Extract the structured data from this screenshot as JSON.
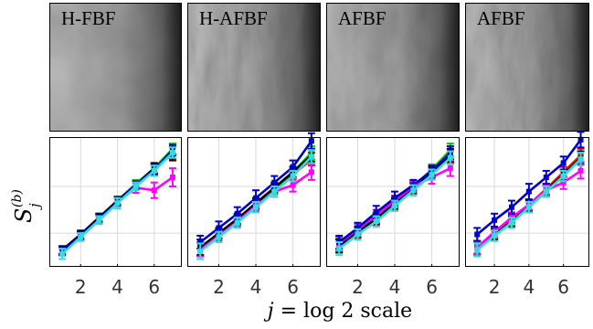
{
  "figure": {
    "xlabel_var": "j",
    "xlabel_rest": " = log 2 scale",
    "ylabel_base": "S",
    "ylabel_sub": "j",
    "ylabel_sup": "(b)"
  },
  "colors": {
    "frame": "#000000",
    "grid": "#d9d9d9",
    "panel_label": "#000000",
    "errorbar": "#222222"
  },
  "chart_data": [
    {
      "type": "line",
      "panel_title": "H-FBF",
      "texture": {
        "streak": "weak",
        "darkening": "right edge"
      },
      "x": [
        1,
        2,
        3,
        4,
        5,
        6,
        7
      ],
      "xticks": [
        2,
        4,
        6
      ],
      "xlim": [
        0.3,
        7.5
      ],
      "ylim": [
        0,
        10
      ],
      "grid": true,
      "series": [
        {
          "color": "#ff0000",
          "values": [
            1.2,
            2.4,
            3.8,
            5.0,
            6.3,
            7.5,
            8.8
          ],
          "err": [
            0.3,
            0.3,
            0.3,
            0.3,
            0.3,
            0.4,
            0.5
          ]
        },
        {
          "color": "#00cc00",
          "values": [
            1.2,
            2.4,
            3.8,
            5.1,
            6.4,
            7.6,
            9.1
          ],
          "err": [
            0.3,
            0.3,
            0.3,
            0.3,
            0.3,
            0.4,
            0.4
          ]
        },
        {
          "color": "#000000",
          "values": [
            1.3,
            2.5,
            3.8,
            5.1,
            6.3,
            7.6,
            8.7
          ],
          "err": [
            0.3,
            0.3,
            0.3,
            0.3,
            0.3,
            0.4,
            0.5
          ]
        },
        {
          "color": "#ff00ff",
          "values": [
            1.2,
            2.3,
            3.6,
            5.0,
            6.1,
            5.9,
            6.9
          ],
          "err": [
            0.3,
            0.3,
            0.3,
            0.3,
            0.4,
            0.6,
            0.7
          ]
        },
        {
          "color": "#0000cc",
          "values": [
            1.2,
            2.4,
            3.7,
            5.0,
            6.3,
            7.5,
            9.0
          ],
          "err": [
            0.3,
            0.3,
            0.3,
            0.3,
            0.3,
            0.4,
            0.4
          ]
        },
        {
          "color": "#33dddd",
          "values": [
            1.0,
            2.3,
            3.6,
            4.9,
            6.2,
            7.4,
            8.8
          ],
          "err": [
            0.4,
            0.3,
            0.3,
            0.4,
            0.3,
            0.4,
            0.4
          ]
        }
      ]
    },
    {
      "type": "line",
      "panel_title": "H-AFBF",
      "texture": {
        "streak": "strong",
        "darkening": "right edge"
      },
      "x": [
        1,
        2,
        3,
        4,
        5,
        6,
        7
      ],
      "xticks": [
        2,
        4,
        6
      ],
      "xlim": [
        0.3,
        7.5
      ],
      "ylim": [
        0,
        10
      ],
      "grid": true,
      "series": [
        {
          "color": "#ff0000",
          "values": [
            1.4,
            2.5,
            3.6,
            4.8,
            6.0,
            7.1,
            8.3
          ],
          "err": [
            0.5,
            0.4,
            0.4,
            0.4,
            0.4,
            0.4,
            0.5
          ]
        },
        {
          "color": "#00cc00",
          "values": [
            1.4,
            2.5,
            3.6,
            4.8,
            6.0,
            7.3,
            8.8
          ],
          "err": [
            0.5,
            0.4,
            0.4,
            0.4,
            0.4,
            0.4,
            0.5
          ]
        },
        {
          "color": "#000000",
          "values": [
            1.5,
            2.6,
            3.7,
            4.9,
            6.1,
            7.3,
            8.6
          ],
          "err": [
            0.6,
            0.4,
            0.4,
            0.4,
            0.4,
            0.4,
            0.5
          ]
        },
        {
          "color": "#ff00ff",
          "values": [
            1.3,
            2.4,
            3.5,
            4.7,
            5.8,
            6.3,
            7.3
          ],
          "err": [
            0.5,
            0.4,
            0.4,
            0.4,
            0.4,
            0.5,
            0.6
          ]
        },
        {
          "color": "#0000cc",
          "values": [
            1.9,
            3.0,
            4.1,
            5.3,
            6.5,
            7.7,
            9.7
          ],
          "err": [
            0.5,
            0.5,
            0.5,
            0.6,
            0.5,
            0.5,
            0.6
          ]
        },
        {
          "color": "#33dddd",
          "values": [
            1.2,
            2.3,
            3.4,
            4.6,
            5.8,
            7.0,
            8.5
          ],
          "err": [
            0.6,
            0.4,
            0.4,
            0.4,
            0.4,
            0.4,
            0.5
          ]
        }
      ]
    },
    {
      "type": "line",
      "panel_title": "AFBF",
      "texture": {
        "streak": "medium",
        "darkening": "right edge"
      },
      "x": [
        1,
        2,
        3,
        4,
        5,
        6,
        7
      ],
      "xticks": [
        2,
        4,
        6
      ],
      "xlim": [
        0.3,
        7.5
      ],
      "ylim": [
        0,
        10
      ],
      "grid": true,
      "series": [
        {
          "color": "#ff0000",
          "values": [
            1.6,
            2.6,
            3.6,
            4.8,
            6.0,
            7.2,
            8.5
          ],
          "err": [
            0.5,
            0.4,
            0.4,
            0.4,
            0.4,
            0.4,
            0.5
          ]
        },
        {
          "color": "#00cc00",
          "values": [
            1.7,
            2.7,
            3.8,
            5.0,
            6.2,
            7.5,
            9.0
          ],
          "err": [
            0.5,
            0.4,
            0.4,
            0.4,
            0.4,
            0.4,
            0.5
          ]
        },
        {
          "color": "#000000",
          "values": [
            1.6,
            2.7,
            3.7,
            4.9,
            6.1,
            7.3,
            8.6
          ],
          "err": [
            0.5,
            0.4,
            0.4,
            0.4,
            0.4,
            0.4,
            0.5
          ]
        },
        {
          "color": "#ff00ff",
          "values": [
            1.8,
            2.9,
            4.0,
            5.1,
            6.2,
            6.9,
            7.6
          ],
          "err": [
            0.5,
            0.4,
            0.4,
            0.4,
            0.4,
            0.5,
            0.6
          ]
        },
        {
          "color": "#0000cc",
          "values": [
            1.9,
            3.0,
            4.2,
            5.3,
            6.3,
            7.4,
            8.8
          ],
          "err": [
            0.5,
            0.4,
            0.5,
            0.5,
            0.4,
            0.4,
            0.5
          ]
        },
        {
          "color": "#33dddd",
          "values": [
            1.4,
            2.5,
            3.5,
            4.7,
            5.9,
            7.1,
            8.4
          ],
          "err": [
            0.5,
            0.4,
            0.4,
            0.4,
            0.4,
            0.4,
            0.5
          ]
        }
      ]
    },
    {
      "type": "line",
      "panel_title": "AFBF",
      "texture": {
        "streak": "strong",
        "darkening": "right edge"
      },
      "x": [
        1,
        2,
        3,
        4,
        5,
        6,
        7
      ],
      "xticks": [
        2,
        4,
        6
      ],
      "xlim": [
        0.3,
        7.5
      ],
      "ylim": [
        0,
        10
      ],
      "grid": true,
      "series": [
        {
          "color": "#ff0000",
          "values": [
            1.5,
            2.6,
            3.6,
            4.8,
            6.0,
            7.3,
            8.6
          ],
          "err": [
            0.5,
            0.4,
            0.4,
            0.4,
            0.4,
            0.4,
            0.5
          ]
        },
        {
          "color": "#00cc00",
          "values": [
            1.4,
            2.4,
            3.4,
            4.6,
            5.8,
            7.0,
            8.4
          ],
          "err": [
            0.5,
            0.4,
            0.4,
            0.4,
            0.4,
            0.4,
            0.5
          ]
        },
        {
          "color": "#000000",
          "values": [
            1.5,
            2.5,
            3.5,
            4.7,
            5.9,
            7.1,
            8.4
          ],
          "err": [
            0.5,
            0.4,
            0.4,
            0.4,
            0.4,
            0.4,
            0.5
          ]
        },
        {
          "color": "#ff00ff",
          "values": [
            1.5,
            2.7,
            3.8,
            4.8,
            5.9,
            6.5,
            7.4
          ],
          "err": [
            0.5,
            0.4,
            0.4,
            0.4,
            0.4,
            0.5,
            0.6
          ]
        },
        {
          "color": "#0000cc",
          "values": [
            2.5,
            3.6,
            4.6,
            5.8,
            6.9,
            8.0,
            9.8
          ],
          "err": [
            0.5,
            0.5,
            0.5,
            0.6,
            0.5,
            0.5,
            0.6
          ]
        },
        {
          "color": "#33dddd",
          "values": [
            1.3,
            2.4,
            3.4,
            4.6,
            5.8,
            7.0,
            8.3
          ],
          "err": [
            0.5,
            0.4,
            0.4,
            0.4,
            0.4,
            0.4,
            0.5
          ]
        }
      ]
    }
  ]
}
